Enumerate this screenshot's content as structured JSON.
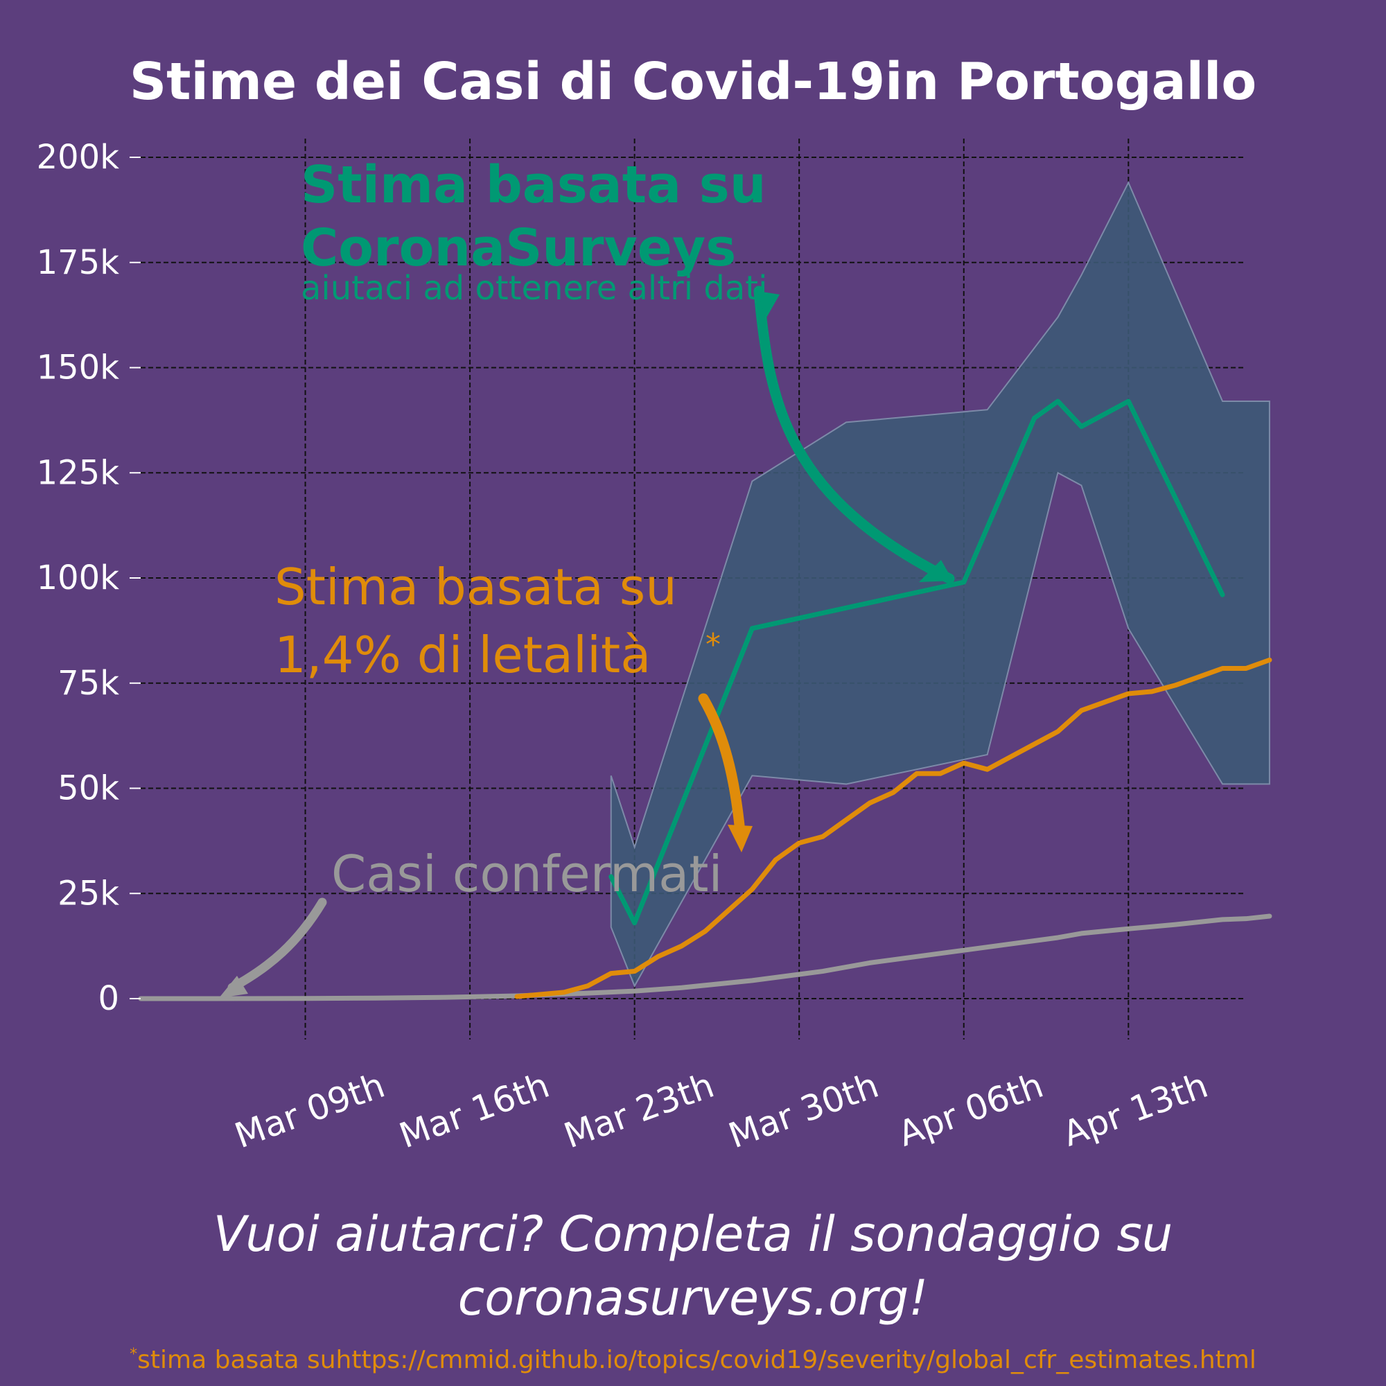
{
  "colors": {
    "background": "#5c3e7d",
    "surveys": "#009973",
    "cfr": "#e08c0a",
    "confirmed": "#999999",
    "band": "#3c5a76",
    "text": "#ffffff"
  },
  "footer": {
    "cta": "Vuoi aiutarci? Completa il sondaggio su coronasurveys.org!",
    "asterisk": "*",
    "note": "stima basata suhttps://cmmid.github.io/topics/covid19/severity/global_cfr_estimates.html"
  },
  "chart_data": {
    "type": "line",
    "title": "Stime dei Casi di Covid-19in Portogallo",
    "xlabel": "",
    "ylabel": "",
    "grid": true,
    "x_range": [
      "2020-03-02",
      "2020-04-18"
    ],
    "ylim": [
      0,
      200000
    ],
    "y_ticks": [
      {
        "value": 0,
        "label": "0"
      },
      {
        "value": 25000,
        "label": "25k"
      },
      {
        "value": 50000,
        "label": "50k"
      },
      {
        "value": 75000,
        "label": "75k"
      },
      {
        "value": 100000,
        "label": "100k"
      },
      {
        "value": 125000,
        "label": "125k"
      },
      {
        "value": 150000,
        "label": "150k"
      },
      {
        "value": 175000,
        "label": "175k"
      },
      {
        "value": 200000,
        "label": "200k"
      }
    ],
    "x_ticks": [
      {
        "value": "2020-03-09",
        "label": "Mar 09th"
      },
      {
        "value": "2020-03-16",
        "label": "Mar 16th"
      },
      {
        "value": "2020-03-23",
        "label": "Mar 23th"
      },
      {
        "value": "2020-03-30",
        "label": "Mar 30th"
      },
      {
        "value": "2020-04-06",
        "label": "Apr 06th"
      },
      {
        "value": "2020-04-13",
        "label": "Apr 13th"
      }
    ],
    "annotations": {
      "surveys_title": "Stima basata su CoronaSurveys",
      "surveys_sub": "aiutaci ad ottenere altri dati",
      "cfr_line1": "Stima basata su",
      "cfr_line2": "1,4% di letalità",
      "cfr_asterisk": "*",
      "confirmed": "Casi confermati"
    },
    "series": [
      {
        "key": "surveys",
        "color": "#009973",
        "x": [
          "2020-03-22",
          "2020-03-23",
          "2020-03-28",
          "2020-04-06",
          "2020-04-09",
          "2020-04-10",
          "2020-04-11",
          "2020-04-13",
          "2020-04-17"
        ],
        "values": [
          29000,
          18000,
          88000,
          99000,
          138000,
          142000,
          136000,
          142000,
          96000
        ]
      },
      {
        "key": "cfr",
        "color": "#e08c0a",
        "x": [
          "2020-03-18",
          "2020-03-20",
          "2020-03-21",
          "2020-03-22",
          "2020-03-23",
          "2020-03-24",
          "2020-03-25",
          "2020-03-26",
          "2020-03-27",
          "2020-03-28",
          "2020-03-29",
          "2020-03-30",
          "2020-03-31",
          "2020-04-01",
          "2020-04-02",
          "2020-04-03",
          "2020-04-04",
          "2020-04-05",
          "2020-04-06",
          "2020-04-07",
          "2020-04-08",
          "2020-04-09",
          "2020-04-10",
          "2020-04-11",
          "2020-04-12",
          "2020-04-13",
          "2020-04-14",
          "2020-04-15",
          "2020-04-16",
          "2020-04-17",
          "2020-04-18",
          "2020-04-19"
        ],
        "values": [
          500,
          1500,
          3000,
          6000,
          6500,
          10000,
          12500,
          16000,
          21000,
          26000,
          33000,
          37000,
          38500,
          42500,
          46500,
          49000,
          53500,
          53500,
          56000,
          54500,
          57500,
          60500,
          63500,
          68500,
          70500,
          72500,
          73000,
          74500,
          76500,
          78500,
          78500,
          80500
        ]
      },
      {
        "key": "confirmed",
        "color": "#999999",
        "x": [
          "2020-03-02",
          "2020-03-05",
          "2020-03-09",
          "2020-03-12",
          "2020-03-15",
          "2020-03-18",
          "2020-03-21",
          "2020-03-23",
          "2020-03-25",
          "2020-03-28",
          "2020-03-31",
          "2020-04-02",
          "2020-04-04",
          "2020-04-06",
          "2020-04-08",
          "2020-04-10",
          "2020-04-11",
          "2020-04-13",
          "2020-04-15",
          "2020-04-17",
          "2020-04-18",
          "2020-04-19"
        ],
        "values": [
          0,
          0,
          50,
          120,
          300,
          650,
          1300,
          1800,
          2600,
          4300,
          6500,
          8500,
          10000,
          11500,
          13000,
          14500,
          15500,
          16600,
          17600,
          18800,
          19000,
          19600
        ]
      }
    ],
    "band": {
      "label": "",
      "color": "#3c5a76",
      "x": [
        "2020-03-22",
        "2020-03-23",
        "2020-03-28",
        "2020-04-01",
        "2020-04-07",
        "2020-04-10",
        "2020-04-11",
        "2020-04-13",
        "2020-04-17",
        "2020-04-19"
      ],
      "upper": [
        53000,
        36000,
        123000,
        137000,
        140000,
        162000,
        172000,
        194000,
        142000,
        142000
      ],
      "lower": [
        17000,
        3000,
        53000,
        51000,
        58000,
        125000,
        122000,
        88000,
        51000,
        51000
      ]
    }
  }
}
